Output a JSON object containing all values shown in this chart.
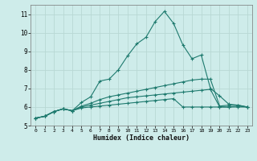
{
  "xlabel": "Humidex (Indice chaleur)",
  "bg_color": "#ceecea",
  "grid_color": "#b8d8d4",
  "line_color": "#1e7a6e",
  "x_values": [
    0,
    1,
    2,
    3,
    4,
    5,
    6,
    7,
    8,
    9,
    10,
    11,
    12,
    13,
    14,
    15,
    16,
    17,
    18,
    19,
    20,
    21,
    22,
    23
  ],
  "series": [
    [
      5.4,
      5.5,
      5.75,
      5.9,
      5.8,
      6.25,
      6.55,
      7.4,
      7.5,
      8.0,
      8.75,
      9.4,
      9.75,
      10.6,
      11.15,
      10.5,
      9.35,
      8.6,
      8.8,
      7.0,
      6.6,
      6.15,
      6.1,
      6.0
    ],
    [
      5.4,
      5.5,
      5.75,
      5.9,
      5.8,
      6.05,
      6.2,
      6.4,
      6.55,
      6.65,
      6.75,
      6.85,
      6.95,
      7.05,
      7.15,
      7.25,
      7.35,
      7.45,
      7.5,
      7.5,
      6.05,
      6.1,
      6.1,
      6.0
    ],
    [
      5.4,
      5.5,
      5.75,
      5.9,
      5.8,
      6.0,
      6.1,
      6.2,
      6.3,
      6.4,
      6.5,
      6.55,
      6.6,
      6.65,
      6.7,
      6.75,
      6.8,
      6.85,
      6.9,
      6.95,
      6.0,
      6.0,
      6.05,
      6.0
    ],
    [
      5.4,
      5.5,
      5.75,
      5.9,
      5.8,
      5.95,
      6.0,
      6.05,
      6.1,
      6.15,
      6.2,
      6.25,
      6.3,
      6.35,
      6.4,
      6.45,
      6.0,
      6.0,
      6.0,
      6.0,
      6.0,
      6.0,
      6.0,
      6.0
    ]
  ],
  "ylim": [
    5.0,
    11.5
  ],
  "xlim": [
    -0.5,
    23.5
  ],
  "yticks": [
    5,
    6,
    7,
    8,
    9,
    10,
    11
  ],
  "xticks": [
    0,
    1,
    2,
    3,
    4,
    5,
    6,
    7,
    8,
    9,
    10,
    11,
    12,
    13,
    14,
    15,
    16,
    17,
    18,
    19,
    20,
    21,
    22,
    23
  ],
  "xticklabels": [
    "0",
    "1",
    "2",
    "3",
    "4",
    "5",
    "6",
    "7",
    "8",
    "9",
    "10",
    "11",
    "12",
    "13",
    "14",
    "15",
    "16",
    "17",
    "18",
    "19",
    "20",
    "21",
    "22",
    "23"
  ]
}
